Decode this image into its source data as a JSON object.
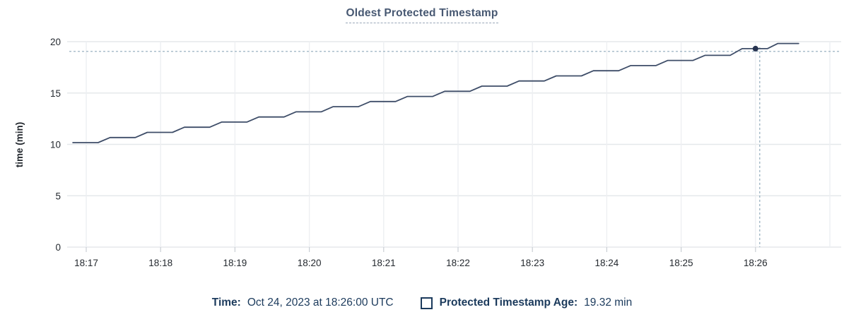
{
  "colors": {
    "background": "#ffffff",
    "title": "#475872",
    "title_underline": "#9aa7b8",
    "axis_text": "#24292f",
    "grid_horizontal": "#e5e8eb",
    "grid_vertical": "#edeff2",
    "tick_mark": "#c9ced4",
    "line": "#3e4d68",
    "dot": "#273350",
    "crosshair": "#8fa9ba",
    "legend_text": "#1b3a5c"
  },
  "chart_data": {
    "type": "line",
    "title": "Oldest Protected Timestamp",
    "ylabel": "time (min)",
    "x_tick_labels": [
      "18:17",
      "18:18",
      "18:19",
      "18:20",
      "18:21",
      "18:22",
      "18:23",
      "18:24",
      "18:25",
      "18:26"
    ],
    "x_extra_gridline_index": 10,
    "y_ticks": [
      0,
      5,
      10,
      15,
      20
    ],
    "ylim": [
      0,
      20
    ],
    "grid": true,
    "legend_position": "bottom",
    "series": [
      {
        "name": "Protected Timestamp Age",
        "unit": "min",
        "x_unit": "minutes after 18:17",
        "points": [
          [
            -0.18,
            10.17
          ],
          [
            0.16,
            10.17
          ],
          [
            0.32,
            10.67
          ],
          [
            0.66,
            10.67
          ],
          [
            0.82,
            11.17
          ],
          [
            1.16,
            11.17
          ],
          [
            1.32,
            11.67
          ],
          [
            1.66,
            11.67
          ],
          [
            1.82,
            12.17
          ],
          [
            2.16,
            12.17
          ],
          [
            2.32,
            12.67
          ],
          [
            2.66,
            12.67
          ],
          [
            2.82,
            13.17
          ],
          [
            3.16,
            13.17
          ],
          [
            3.32,
            13.67
          ],
          [
            3.66,
            13.67
          ],
          [
            3.82,
            14.17
          ],
          [
            4.16,
            14.17
          ],
          [
            4.32,
            14.67
          ],
          [
            4.66,
            14.67
          ],
          [
            4.82,
            15.17
          ],
          [
            5.16,
            15.17
          ],
          [
            5.32,
            15.67
          ],
          [
            5.66,
            15.67
          ],
          [
            5.82,
            16.17
          ],
          [
            6.16,
            16.17
          ],
          [
            6.32,
            16.67
          ],
          [
            6.66,
            16.67
          ],
          [
            6.82,
            17.17
          ],
          [
            7.16,
            17.17
          ],
          [
            7.32,
            17.67
          ],
          [
            7.66,
            17.67
          ],
          [
            7.82,
            18.17
          ],
          [
            8.16,
            18.17
          ],
          [
            8.32,
            18.67
          ],
          [
            8.66,
            18.67
          ],
          [
            8.82,
            19.32
          ],
          [
            9.16,
            19.32
          ],
          [
            9.3,
            19.82
          ],
          [
            9.58,
            19.82
          ]
        ]
      }
    ],
    "hover": {
      "x_index": 9,
      "time": "18:26:00",
      "value": 19.32,
      "hline_value": 19.05
    }
  },
  "legend": {
    "time_label": "Time:",
    "time_value": "Oct 24, 2023 at 18:26:00 UTC",
    "series_label": "Protected Timestamp Age:",
    "series_value": "19.32 min"
  }
}
